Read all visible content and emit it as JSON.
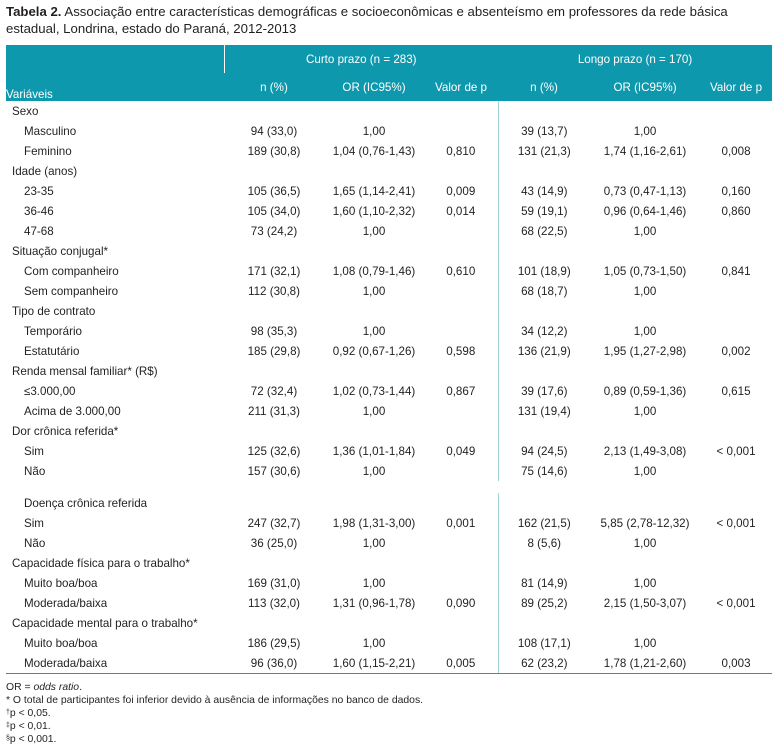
{
  "caption": {
    "label": "Tabela 2.",
    "text": " Associação entre características demográficas e socioeconômicas e absenteísmo em professores da rede básica estadual, Londrina, estado do Paraná, 2012-2013"
  },
  "header": {
    "variaveis": "Variáveis",
    "short_group": "Curto prazo (n = 283)",
    "long_group": "Longo prazo (n = 170)",
    "n_pct": "n (%)",
    "or_ic": "OR (IC95%)",
    "p_value": "Valor de p"
  },
  "rows": [
    {
      "type": "group",
      "label": "Sexo"
    },
    {
      "type": "item",
      "label": "Masculino",
      "n1": "94 (33,0)",
      "or1": "1,00",
      "p1": "",
      "n2": "39 (13,7)",
      "or2": "1,00",
      "p2": ""
    },
    {
      "type": "item",
      "label": "Feminino",
      "n1": "189 (30,8)",
      "or1": "1,04 (0,76-1,43)",
      "p1": "0,810",
      "n2": "131 (21,3)",
      "or2": "1,74 (1,16-2,61)",
      "p2": "0,008"
    },
    {
      "type": "group",
      "label": "Idade (anos)"
    },
    {
      "type": "item",
      "label": "23-35",
      "n1": "105 (36,5)",
      "or1": "1,65 (1,14-2,41)",
      "p1": "0,009",
      "n2": "43 (14,9)",
      "or2": "0,73 (0,47-1,13)",
      "p2": "0,160"
    },
    {
      "type": "item",
      "label": "36-46",
      "n1": "105 (34,0)",
      "or1": "1,60 (1,10-2,32)",
      "p1": "0,014",
      "n2": "59 (19,1)",
      "or2": "0,96 (0,64-1,46)",
      "p2": "0,860"
    },
    {
      "type": "item",
      "label": "47-68",
      "n1": "73 (24,2)",
      "or1": "1,00",
      "p1": "",
      "n2": "68 (22,5)",
      "or2": "1,00",
      "p2": ""
    },
    {
      "type": "group",
      "label": "Situação conjugal*"
    },
    {
      "type": "item",
      "label": "Com companheiro",
      "n1": "171 (32,1)",
      "or1": "1,08 (0,79-1,46)",
      "p1": "0,610",
      "n2": "101 (18,9)",
      "or2": "1,05 (0,73-1,50)",
      "p2": "0,841"
    },
    {
      "type": "item",
      "label": "Sem companheiro",
      "n1": "112 (30,8)",
      "or1": "1,00",
      "p1": "",
      "n2": "68 (18,7)",
      "or2": "1,00",
      "p2": ""
    },
    {
      "type": "group",
      "label": "Tipo de contrato"
    },
    {
      "type": "item",
      "label": "Temporário",
      "n1": "98 (35,3)",
      "or1": "1,00",
      "p1": "",
      "n2": "34 (12,2)",
      "or2": "1,00",
      "p2": ""
    },
    {
      "type": "item",
      "label": "Estatutário",
      "n1": "185 (29,8)",
      "or1": "0,92 (0,67-1,26)",
      "p1": "0,598",
      "n2": "136 (21,9)",
      "or2": "1,95 (1,27-2,98)",
      "p2": "0,002"
    },
    {
      "type": "group",
      "label": "Renda mensal familiar* (R$)"
    },
    {
      "type": "item",
      "label": "≤3.000,00",
      "n1": "72 (32,4)",
      "or1": "1,02 (0,73-1,44)",
      "p1": "0,867",
      "n2": "39 (17,6)",
      "or2": "0,89 (0,59-1,36)",
      "p2": "0,615"
    },
    {
      "type": "item",
      "label": "Acima de 3.000,00",
      "n1": "211 (31,3)",
      "or1": "1,00",
      "p1": "",
      "n2": "131 (19,4)",
      "or2": "1,00",
      "p2": ""
    },
    {
      "type": "group",
      "label": "Dor crônica referida*"
    },
    {
      "type": "item",
      "label": "Sim",
      "n1": "125 (32,6)",
      "or1": "1,36 (1,01-1,84)",
      "p1": "0,049",
      "n2": "94 (24,5)",
      "or2": "2,13 (1,49-3,08)",
      "p2": "< 0,001"
    },
    {
      "type": "item",
      "label": "Não",
      "n1": "157 (30,6)",
      "or1": "1,00",
      "p1": "",
      "n2": "75 (14,6)",
      "or2": "1,00",
      "p2": ""
    },
    {
      "type": "spacer"
    },
    {
      "type": "group",
      "label": "Doença crônica referida",
      "indent": true
    },
    {
      "type": "item",
      "label": "Sim",
      "n1": "247 (32,7)",
      "or1": "1,98 (1,31-3,00)",
      "p1": "0,001",
      "n2": "162 (21,5)",
      "or2": "5,85 (2,78-12,32)",
      "p2": "< 0,001"
    },
    {
      "type": "item",
      "label": "Não",
      "n1": "36 (25,0)",
      "or1": "1,00",
      "p1": "",
      "n2": "8 (5,6)",
      "or2": "1,00",
      "p2": ""
    },
    {
      "type": "group",
      "label": "Capacidade física para o trabalho*"
    },
    {
      "type": "item",
      "label": "Muito boa/boa",
      "n1": "169 (31,0)",
      "or1": "1,00",
      "p1": "",
      "n2": "81 (14,9)",
      "or2": "1,00",
      "p2": ""
    },
    {
      "type": "item",
      "label": "Moderada/baixa",
      "n1": "113 (32,0)",
      "or1": "1,31 (0,96-1,78)",
      "p1": "0,090",
      "n2": "89 (25,2)",
      "or2": "2,15 (1,50-3,07)",
      "p2": "< 0,001"
    },
    {
      "type": "group",
      "label": "Capacidade mental para o trabalho*"
    },
    {
      "type": "item",
      "label": "Muito boa/boa",
      "n1": "186 (29,5)",
      "or1": "1,00",
      "p1": "",
      "n2": "108 (17,1)",
      "or2": "1,00",
      "p2": ""
    },
    {
      "type": "item",
      "label": "Moderada/baixa",
      "n1": "96 (36,0)",
      "or1": "1,60 (1,15-2,21)",
      "p1": "0,005",
      "n2": "62 (23,2)",
      "or2": "1,78 (1,21-2,60)",
      "p2": "0,003"
    }
  ],
  "notes": {
    "or_prefix": "OR = ",
    "or_text": "odds ratio",
    "or_suffix": ".",
    "asterisk": "* O total de participantes foi inferior devido à ausência de informações no banco de dados.",
    "dagger_mark": "†",
    "dagger_text": "p < 0,05.",
    "ddagger_mark": "‡",
    "ddagger_text": "p < 0,01.",
    "section_mark": "§",
    "section_text": "p < 0,001."
  }
}
